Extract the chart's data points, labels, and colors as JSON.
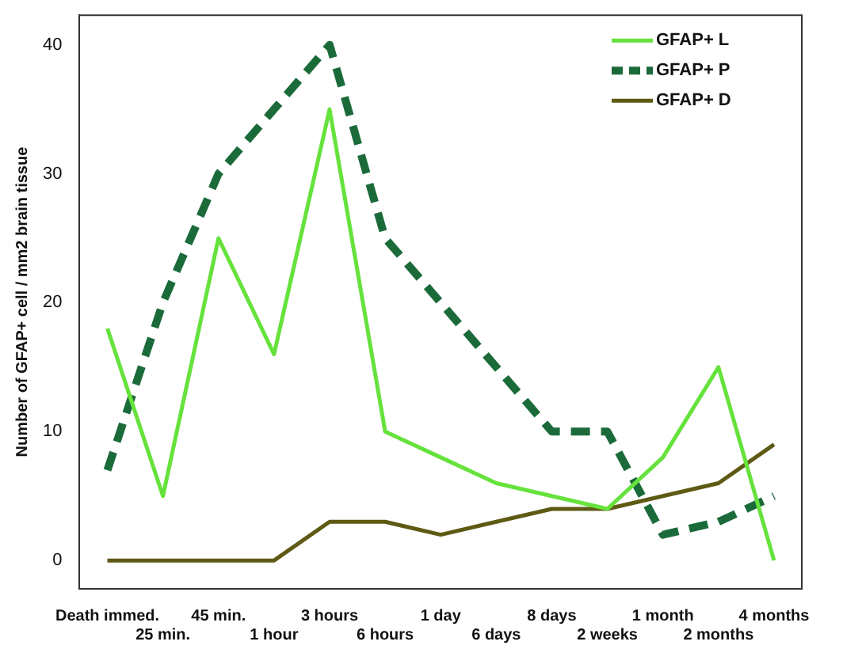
{
  "chart_data": {
    "type": "line",
    "ylabel": "Number of GFAP+ cell / mm2 brain tissue",
    "categories": [
      "Death immed.",
      "25 min.",
      "45 min.",
      "1 hour",
      "3 hours",
      "6 hours",
      "1 day",
      "6 days",
      "8 days",
      "2 weeks",
      "1 month",
      "2 months",
      "4 months"
    ],
    "series": [
      {
        "name": "GFAP+ L",
        "color": "#66e23c",
        "line_style": "solid",
        "values": [
          18,
          5,
          25,
          16,
          35,
          10,
          8,
          6,
          5,
          4,
          8,
          15,
          0
        ]
      },
      {
        "name": "GFAP+ P",
        "color": "#1b6b3a",
        "line_style": "dashed",
        "values": [
          7,
          20,
          30,
          35,
          40,
          25,
          20,
          15,
          10,
          10,
          2,
          3,
          5
        ]
      },
      {
        "name": "GFAP+ D",
        "color": "#5e5a14",
        "line_style": "solid",
        "values": [
          0,
          0,
          0,
          0,
          3,
          3,
          2,
          3,
          4,
          4,
          5,
          6,
          9
        ]
      }
    ],
    "ylim": [
      -2.2,
      42.3
    ],
    "yticks": [
      0,
      10,
      20,
      30,
      40
    ],
    "grid": false,
    "legend": "top right",
    "marker": "none"
  }
}
